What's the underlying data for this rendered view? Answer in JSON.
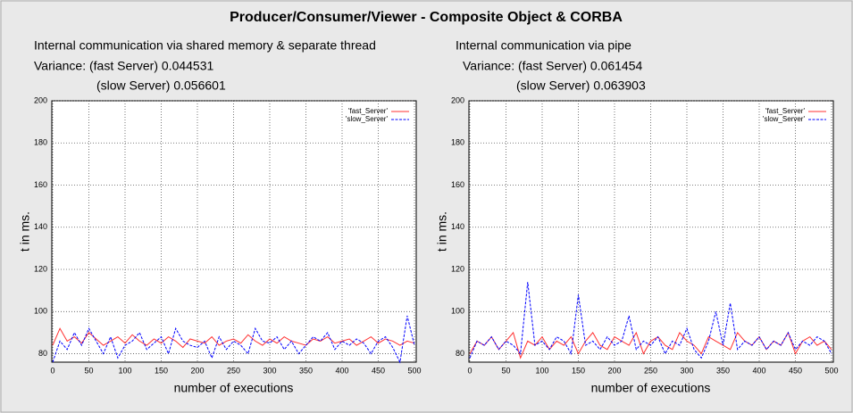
{
  "title": "Producer/Consumer/Viewer - Composite Object & CORBA",
  "chart_data": [
    {
      "type": "line",
      "annotations": [
        "Internal communication via shared memory & separate thread",
        "Variance: (fast Server)  0.044531",
        "(slow Server) 0.056601"
      ],
      "xlabel": "number of executions",
      "ylabel": "t in ms.",
      "x": [
        0,
        10,
        20,
        30,
        40,
        50,
        60,
        70,
        80,
        90,
        100,
        110,
        120,
        130,
        140,
        150,
        160,
        170,
        180,
        190,
        200,
        210,
        220,
        230,
        240,
        250,
        260,
        270,
        280,
        290,
        300,
        310,
        320,
        330,
        340,
        350,
        360,
        370,
        380,
        390,
        400,
        410,
        420,
        430,
        440,
        450,
        460,
        470,
        480,
        490,
        500
      ],
      "xlim": [
        0,
        500
      ],
      "xticks": [
        0,
        50,
        100,
        150,
        200,
        250,
        300,
        350,
        400,
        450,
        500
      ],
      "ylim": [
        76,
        200
      ],
      "yticks": [
        80,
        100,
        120,
        140,
        160,
        180,
        200
      ],
      "grid": true,
      "legend": "top-right",
      "series": [
        {
          "name": "'fast_Server'",
          "color": "#ff3030",
          "values": [
            84,
            92,
            86,
            88,
            85,
            90,
            87,
            84,
            86,
            88,
            85,
            89,
            86,
            84,
            87,
            85,
            88,
            86,
            83,
            87,
            86,
            85,
            88,
            84,
            86,
            87,
            85,
            89,
            86,
            84,
            87,
            85,
            88,
            86,
            85,
            84,
            87,
            86,
            88,
            85,
            86,
            87,
            84,
            86,
            88,
            85,
            87,
            86,
            84,
            86,
            85
          ]
        },
        {
          "name": "'slow_Server'",
          "color": "#0000ff",
          "dashed": true,
          "values": [
            76,
            86,
            82,
            90,
            84,
            92,
            86,
            80,
            88,
            78,
            84,
            86,
            90,
            82,
            85,
            88,
            80,
            92,
            86,
            84,
            83,
            86,
            78,
            88,
            82,
            86,
            84,
            80,
            92,
            86,
            85,
            88,
            82,
            86,
            80,
            84,
            88,
            86,
            90,
            82,
            86,
            84,
            87,
            85,
            80,
            86,
            88,
            83,
            76,
            98,
            84
          ]
        }
      ]
    },
    {
      "type": "line",
      "annotations": [
        "Internal communication via pipe",
        "Variance: (fast Server)  0.061454",
        "(slow Server) 0.063903"
      ],
      "xlabel": "number of executions",
      "ylabel": "t in ms.",
      "x": [
        0,
        10,
        20,
        30,
        40,
        50,
        60,
        70,
        80,
        90,
        100,
        110,
        120,
        130,
        140,
        150,
        160,
        170,
        180,
        190,
        200,
        210,
        220,
        230,
        240,
        250,
        260,
        270,
        280,
        290,
        300,
        310,
        320,
        330,
        340,
        350,
        360,
        370,
        380,
        390,
        400,
        410,
        420,
        430,
        440,
        450,
        460,
        470,
        480,
        490,
        500
      ],
      "xlim": [
        0,
        500
      ],
      "xticks": [
        0,
        50,
        100,
        150,
        200,
        250,
        300,
        350,
        400,
        450,
        500
      ],
      "ylim": [
        76,
        200
      ],
      "yticks": [
        80,
        100,
        120,
        140,
        160,
        180,
        200
      ],
      "grid": true,
      "legend": "top-right",
      "series": [
        {
          "name": "'fast_Server'",
          "color": "#ff3030",
          "values": [
            80,
            86,
            84,
            88,
            82,
            86,
            90,
            78,
            86,
            84,
            88,
            82,
            86,
            84,
            88,
            80,
            86,
            90,
            84,
            82,
            88,
            86,
            84,
            90,
            80,
            86,
            88,
            84,
            82,
            90,
            86,
            84,
            80,
            88,
            86,
            84,
            82,
            90,
            86,
            84,
            88,
            82,
            86,
            84,
            90,
            80,
            86,
            88,
            84,
            86,
            82
          ]
        },
        {
          "name": "'slow_Server'",
          "color": "#0000ff",
          "dashed": true,
          "values": [
            78,
            86,
            84,
            88,
            82,
            86,
            84,
            80,
            114,
            84,
            86,
            82,
            88,
            86,
            80,
            108,
            84,
            86,
            82,
            88,
            84,
            86,
            98,
            82,
            86,
            84,
            88,
            80,
            86,
            84,
            92,
            82,
            78,
            86,
            100,
            84,
            104,
            82,
            86,
            84,
            88,
            82,
            86,
            84,
            90,
            82,
            86,
            84,
            88,
            86,
            80
          ]
        }
      ]
    }
  ]
}
